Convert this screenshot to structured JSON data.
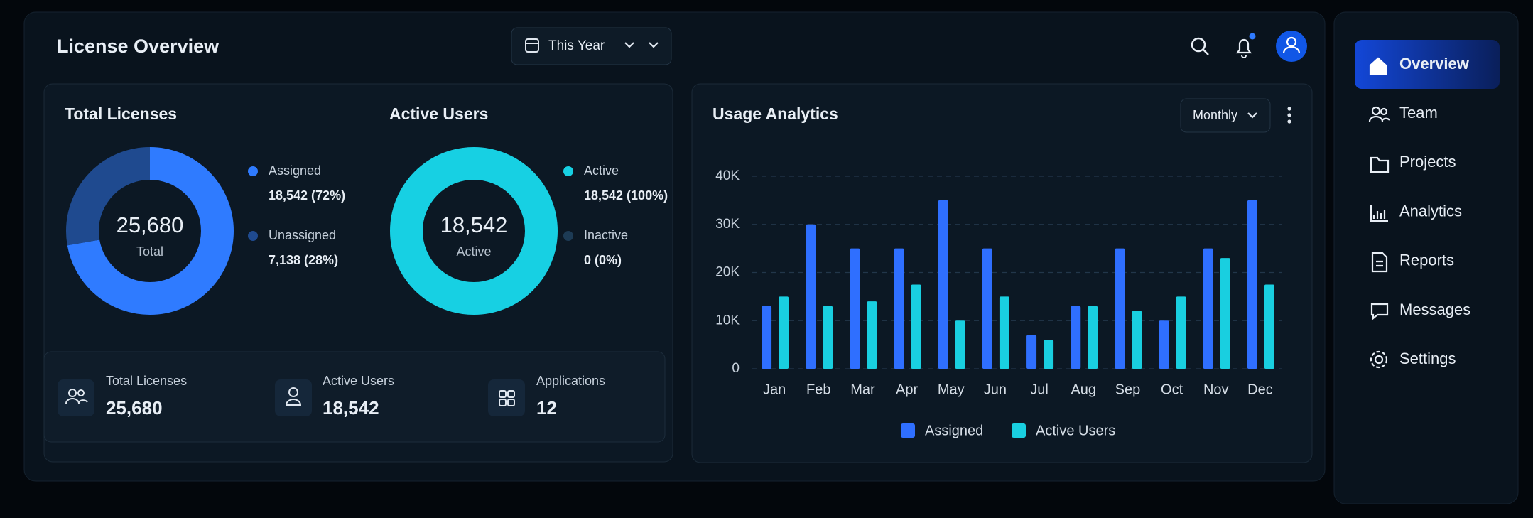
{
  "header": {
    "title": "License Overview",
    "date_filter": "This Year"
  },
  "total_licenses": {
    "title": "Total Licenses",
    "center_value": "25,680",
    "center_label": "Total",
    "segments": [
      {
        "name": "Assigned",
        "value": 18542,
        "value_label": "18,542 (72%)",
        "color": "#2f7bff"
      },
      {
        "name": "Unassigned",
        "value": 7138,
        "value_label": "7,138 (28%)",
        "color": "#1f4a8f"
      }
    ]
  },
  "active_users": {
    "title": "Active Users",
    "center_value": "18,542",
    "center_label": "Active",
    "segments": [
      {
        "name": "Active",
        "value": 18542,
        "value_label": "18,542 (100%)",
        "color": "#17d0e3"
      },
      {
        "name": "Inactive",
        "value": 0,
        "value_label": "0 (0%)",
        "color": "#1d3b55"
      }
    ]
  },
  "stats": [
    {
      "label": "Total Licenses",
      "value": "25,680"
    },
    {
      "label": "Active Users",
      "value": "18,542"
    },
    {
      "label": "Applications",
      "value": "12"
    }
  ],
  "usage_analytics": {
    "type": "bar",
    "title": "Usage Analytics",
    "period": "Monthly",
    "categories": [
      "Jan",
      "Feb",
      "Mar",
      "Apr",
      "May",
      "Jun",
      "Jul",
      "Aug",
      "Sep",
      "Oct",
      "Nov",
      "Dec"
    ],
    "series": [
      {
        "name": "Assigned",
        "color": "#2f6fff",
        "values": [
          13000,
          30000,
          25000,
          25000,
          35000,
          25000,
          7000,
          13000,
          25000,
          10000,
          25000,
          35000
        ]
      },
      {
        "name": "Active Users",
        "color": "#19cfe0",
        "values": [
          15000,
          13000,
          14000,
          17500,
          10000,
          15000,
          6000,
          13000,
          12000,
          15000,
          23000,
          17500
        ]
      }
    ],
    "ylim": [
      0,
      40000
    ],
    "yticks": [
      0,
      {
        "value": 10000,
        "label": "10K"
      },
      {
        "value": 20000,
        "label": "20K"
      },
      {
        "value": 30000,
        "label": "30K"
      },
      {
        "value": 40000,
        "label": "40K"
      }
    ],
    "grid": true
  },
  "sidebar": {
    "items": [
      "Overview",
      "Team",
      "Projects",
      "Analytics",
      "Reports",
      "Messages",
      "Settings"
    ]
  }
}
